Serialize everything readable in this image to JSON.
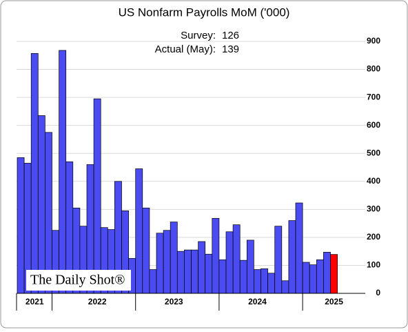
{
  "chart_data": {
    "type": "bar",
    "title": "US Nonfarm Payrolls MoM ('000)",
    "annotations": [
      {
        "label": "Survey:",
        "value": 126
      },
      {
        "label": "Actual (May):",
        "value": 139
      }
    ],
    "logo": "The Daily Shot®",
    "categories": [
      null,
      null,
      "2021",
      null,
      null,
      null,
      null,
      null,
      null,
      null,
      null,
      "2022",
      null,
      null,
      null,
      null,
      null,
      null,
      null,
      null,
      null,
      null,
      "2023",
      null,
      null,
      null,
      null,
      null,
      null,
      null,
      null,
      null,
      null,
      null,
      "2024",
      null,
      null,
      null,
      null,
      null,
      null,
      null,
      null,
      null,
      null,
      "2025"
    ],
    "values": [
      485,
      465,
      857,
      635,
      575,
      225,
      868,
      470,
      305,
      240,
      460,
      695,
      235,
      228,
      400,
      295,
      125,
      445,
      305,
      85,
      215,
      225,
      255,
      150,
      155,
      155,
      185,
      140,
      268,
      120,
      220,
      245,
      118,
      190,
      85,
      88,
      72,
      240,
      45,
      260,
      323,
      111,
      102,
      120,
      147,
      139
    ],
    "color": "#4b4bf2",
    "last_color": "#ff0000",
    "ylim": [
      0,
      900
    ],
    "yticks": [
      0,
      100,
      200,
      300,
      400,
      500,
      600,
      700,
      800,
      900
    ],
    "grid": true
  }
}
